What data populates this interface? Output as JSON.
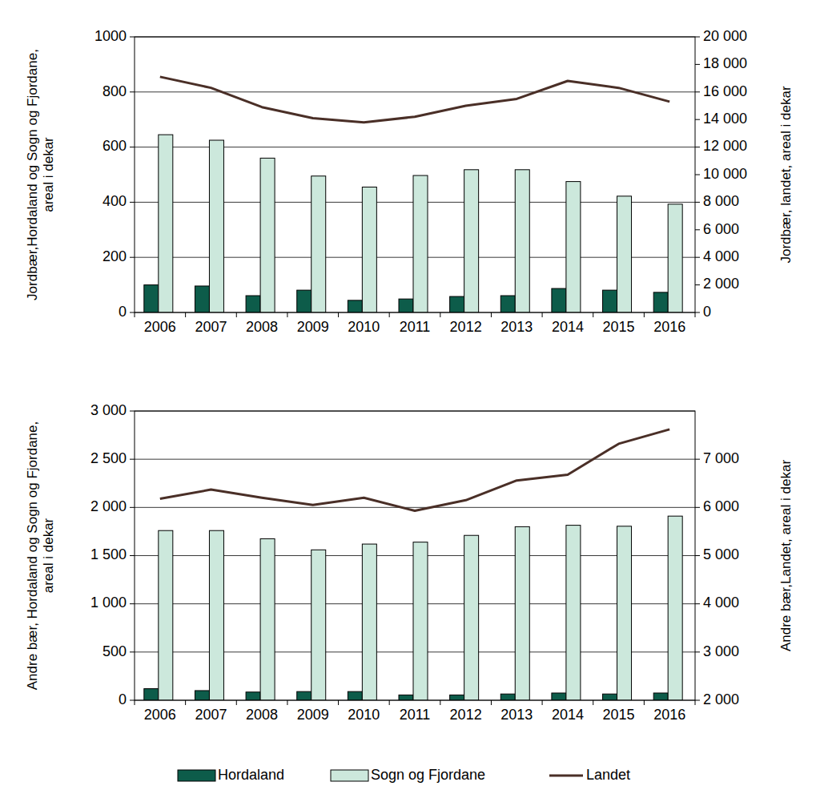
{
  "chart_data": [
    {
      "type": "bar",
      "y_label": "Jordbær,Hordaland og Sogn og Fjordane, areal i dekar",
      "y2_label": "Jordbær, landet, areal i dekar",
      "categories": [
        "2006",
        "2007",
        "2008",
        "2009",
        "2010",
        "2011",
        "2012",
        "2013",
        "2014",
        "2015",
        "2016"
      ],
      "series": [
        {
          "name": "Hordaland",
          "type": "bar",
          "color": "#0d5c4a",
          "values": [
            100,
            96,
            61,
            81,
            44,
            49,
            58,
            61,
            87,
            81,
            73
          ]
        },
        {
          "name": "Sogn og Fjordane",
          "type": "bar",
          "color": "#cce8dc",
          "values": [
            645,
            625,
            560,
            495,
            455,
            497,
            518,
            518,
            475,
            422,
            393
          ]
        },
        {
          "name": "Landet",
          "type": "line",
          "axis": "y2",
          "color": "#4a2f27",
          "values": [
            17100,
            16300,
            14900,
            14100,
            13800,
            14200,
            15000,
            15500,
            16800,
            16300,
            15300
          ]
        }
      ],
      "ylim": [
        0,
        1000
      ],
      "yticks": [
        0,
        200,
        400,
        600,
        800,
        1000
      ],
      "y2lim": [
        0,
        20000
      ],
      "y2ticks": [
        0,
        {
          "value": 2000,
          "label": "2 000"
        },
        {
          "value": 4000,
          "label": "4 000"
        },
        {
          "value": 6000,
          "label": "6 000"
        },
        {
          "value": 8000,
          "label": "8 000"
        },
        {
          "value": 10000,
          "label": "10 000"
        },
        {
          "value": 12000,
          "label": "12 000"
        },
        {
          "value": 14000,
          "label": "14 000"
        },
        {
          "value": 16000,
          "label": "16 000"
        },
        {
          "value": 18000,
          "label": "18 000"
        },
        {
          "value": 20000,
          "label": "20 000"
        }
      ],
      "grid": true
    },
    {
      "type": "bar",
      "y_label": "Andre bær, Hordaland og Sogn og Fjordane, areal i dekar",
      "y2_label": "Andre bær,Landet, areal i dekar",
      "categories": [
        "2006",
        "2007",
        "2008",
        "2009",
        "2010",
        "2011",
        "2012",
        "2013",
        "2014",
        "2015",
        "2016"
      ],
      "series": [
        {
          "name": "Hordaland",
          "type": "bar",
          "color": "#0d5c4a",
          "values": [
            120,
            100,
            85,
            90,
            90,
            55,
            55,
            65,
            75,
            65,
            75
          ]
        },
        {
          "name": "Sogn og Fjordane",
          "type": "bar",
          "color": "#cce8dc",
          "values": [
            1760,
            1760,
            1675,
            1560,
            1620,
            1640,
            1710,
            1800,
            1815,
            1805,
            1910
          ]
        },
        {
          "name": "Landet",
          "type": "line",
          "axis": "y2",
          "color": "#4a2f27",
          "values": [
            6180,
            6370,
            6200,
            6050,
            6200,
            5930,
            6150,
            6560,
            6680,
            7320,
            7620
          ]
        }
      ],
      "ylim": [
        0,
        3000
      ],
      "yticks": [
        0,
        500,
        {
          "value": 1000,
          "label": "1 000"
        },
        {
          "value": 1500,
          "label": "1 500"
        },
        {
          "value": 2000,
          "label": "2 000"
        },
        {
          "value": 2500,
          "label": "2 500"
        },
        {
          "value": 3000,
          "label": "3 000"
        }
      ],
      "y2lim": [
        2000,
        8000
      ],
      "y2ticks": [
        {
          "value": 2000,
          "label": "2 000"
        },
        {
          "value": 3000,
          "label": "3 000"
        },
        {
          "value": 4000,
          "label": "4 000"
        },
        {
          "value": 5000,
          "label": "5 000"
        },
        {
          "value": 6000,
          "label": "6 000"
        },
        {
          "value": 7000,
          "label": "7 000"
        }
      ],
      "grid": true,
      "legend": "bottom"
    }
  ]
}
